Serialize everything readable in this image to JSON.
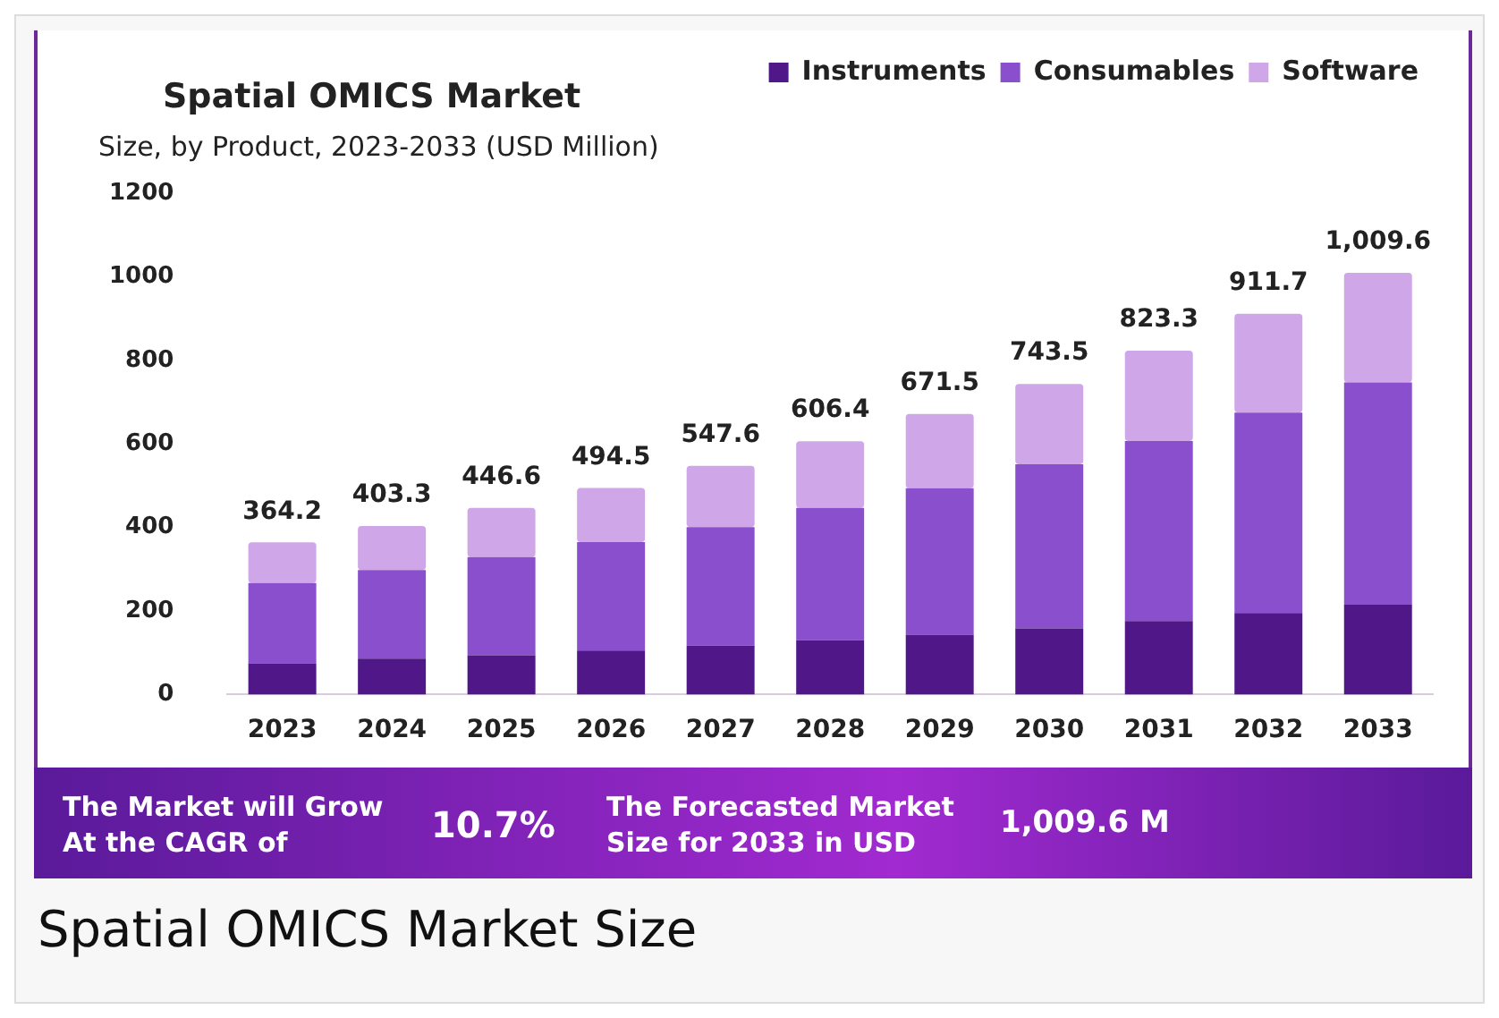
{
  "chart_data": {
    "type": "bar",
    "title": "Spatial OMICS Market",
    "subtitle": "Size, by Product, 2023-2033 (USD Million)",
    "categories": [
      "2023",
      "2024",
      "2025",
      "2026",
      "2027",
      "2028",
      "2029",
      "2030",
      "2031",
      "2032",
      "2033"
    ],
    "series": [
      {
        "name": "Instruments",
        "color": "#4f1787",
        "values": [
          75,
          86,
          94,
          105,
          117,
          130,
          143,
          158,
          176,
          195,
          215
        ]
      },
      {
        "name": "Consumables",
        "color": "#8a4fcc",
        "values": [
          192,
          212,
          235,
          260,
          284,
          317,
          351,
          393,
          431,
          480,
          532
        ]
      },
      {
        "name": "Software",
        "color": "#cfa6e8",
        "values": [
          97.2,
          105.3,
          117.6,
          129.5,
          146.6,
          159.4,
          177.5,
          192.5,
          216.3,
          236.7,
          262.6
        ]
      }
    ],
    "stacked": true,
    "ylim": [
      0,
      1200
    ],
    "yticks": [
      0,
      200,
      400,
      600,
      800,
      1000,
      1200
    ],
    "grid": false,
    "legend": "top right",
    "totals": [
      "364.2",
      "403.3",
      "446.6",
      "494.5",
      "547.6",
      "606.4",
      "671.5",
      "743.5",
      "823.3",
      "911.7",
      "1,009.6"
    ],
    "annotations": [
      "The Market will Grow At the CAGR of",
      "10.7%",
      "The Forecasted Market Size for 2033 in USD",
      "1,009.6 M",
      "Spatial OMICS Market Size"
    ]
  }
}
